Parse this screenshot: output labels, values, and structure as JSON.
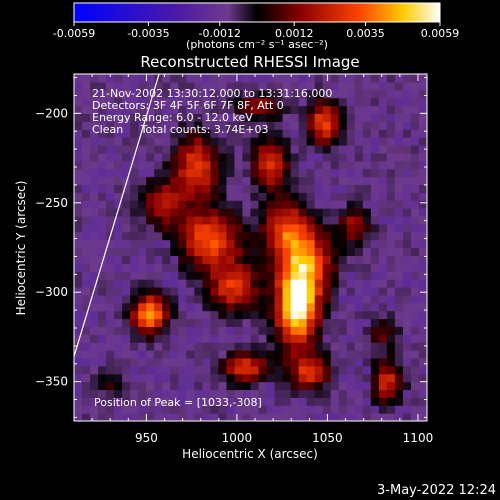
{
  "chart_data": {
    "type": "heatmap",
    "title": "Reconstructed RHESSI Image",
    "xlabel": "Heliocentric X (arcsec)",
    "ylabel": "Heliocentric Y (arcsec)",
    "xlim": [
      910,
      1105
    ],
    "ylim": [
      -372,
      -178
    ],
    "x_ticks": [
      950,
      1000,
      1050,
      1100
    ],
    "y_ticks": [
      -200,
      -250,
      -300,
      -350
    ],
    "colorbar": {
      "min": -0.0059,
      "max": 0.0059,
      "tick_values": [
        -0.0059,
        -0.0035,
        -0.0012,
        0.0012,
        0.0035,
        0.0059
      ],
      "tick_labels": [
        "-0.0059",
        "-0.0035",
        "-0.0012",
        "0.0012",
        "0.0035",
        "0.0059"
      ],
      "units": "(photons cm⁻² s⁻¹ asec⁻²)",
      "colors": [
        "#0000ff",
        "#4a1aa6",
        "#6e3a8c",
        "#000000",
        "#8b0000",
        "#ff4400",
        "#ffcc00",
        "#ffffff"
      ]
    },
    "info_lines": [
      "21-Nov-2002 13:30:12.000 to 13:31:16.000",
      "Detectors: 3F 4F 5F 6F 7F 8F, Att 0",
      "Energy Range: 6.0 - 12.0 keV",
      "Clean     Total counts: 3.74E+03"
    ],
    "peak_label": "Position of Peak = [1033,-308]",
    "peak": [
      1033,
      -308
    ],
    "limb_line": [
      [
        910,
        -336
      ],
      [
        957,
        -178
      ]
    ],
    "emission_sources": [
      {
        "x": 1033,
        "y": -308,
        "amp": 1.0,
        "sx": 8,
        "sy": 16
      },
      {
        "x": 1040,
        "y": -283,
        "amp": 0.55,
        "sx": 10,
        "sy": 14
      },
      {
        "x": 1027,
        "y": -265,
        "amp": 0.55,
        "sx": 9,
        "sy": 12
      },
      {
        "x": 998,
        "y": -297,
        "amp": 0.55,
        "sx": 10,
        "sy": 10
      },
      {
        "x": 985,
        "y": -270,
        "amp": 0.65,
        "sx": 12,
        "sy": 11
      },
      {
        "x": 978,
        "y": -230,
        "amp": 0.6,
        "sx": 9,
        "sy": 13
      },
      {
        "x": 958,
        "y": -250,
        "amp": 0.45,
        "sx": 8,
        "sy": 9
      },
      {
        "x": 952,
        "y": -312,
        "amp": 0.75,
        "sx": 7,
        "sy": 8
      },
      {
        "x": 1018,
        "y": -228,
        "amp": 0.55,
        "sx": 7,
        "sy": 10
      },
      {
        "x": 1048,
        "y": -205,
        "amp": 0.6,
        "sx": 6,
        "sy": 9
      },
      {
        "x": 1005,
        "y": -342,
        "amp": 0.55,
        "sx": 9,
        "sy": 6
      },
      {
        "x": 1040,
        "y": -345,
        "amp": 0.5,
        "sx": 8,
        "sy": 7
      },
      {
        "x": 1083,
        "y": -350,
        "amp": 0.5,
        "sx": 6,
        "sy": 9
      },
      {
        "x": 1065,
        "y": -262,
        "amp": 0.4,
        "sx": 6,
        "sy": 8
      },
      {
        "x": 1012,
        "y": -196,
        "amp": 0.4,
        "sx": 9,
        "sy": 5
      },
      {
        "x": 1080,
        "y": -322,
        "amp": 0.3,
        "sx": 6,
        "sy": 6
      },
      {
        "x": 930,
        "y": -350,
        "amp": 0.2,
        "sx": 6,
        "sy": 6
      }
    ]
  },
  "footer": {
    "date_stamp": "3-May-2022 12:24"
  }
}
